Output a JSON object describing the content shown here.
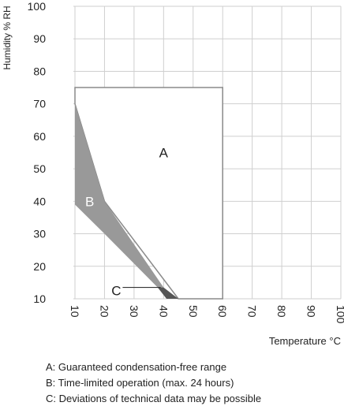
{
  "chart_data": {
    "type": "area",
    "title": "",
    "xlabel": "Temperature °C",
    "ylabel": "Humidity % RH",
    "xlim": [
      10,
      100
    ],
    "ylim": [
      10,
      100
    ],
    "x_ticks": [
      "10",
      "20",
      "30",
      "40",
      "50",
      "60",
      "70",
      "80",
      "90",
      "100"
    ],
    "y_ticks": [
      "10",
      "20",
      "30",
      "40",
      "50",
      "60",
      "70",
      "80",
      "90",
      "100"
    ],
    "grid": true,
    "regions": [
      {
        "label": "A",
        "color": "#ffffff",
        "outline": "#8a8a8a",
        "points": [
          [
            10,
            75
          ],
          [
            60,
            75
          ],
          [
            60,
            10
          ],
          [
            45,
            10
          ],
          [
            20,
            40
          ],
          [
            10,
            70
          ]
        ]
      },
      {
        "label": "B",
        "color": "#999999",
        "points": [
          [
            10,
            70
          ],
          [
            20,
            40
          ],
          [
            40,
            13.5
          ],
          [
            38,
            13.5
          ],
          [
            20,
            30
          ],
          [
            10,
            39
          ]
        ]
      },
      {
        "label": "C",
        "color": "#555555",
        "points": [
          [
            38,
            13.5
          ],
          [
            40,
            13.5
          ],
          [
            45,
            10
          ],
          [
            41,
            10
          ]
        ]
      }
    ],
    "annotations": [
      {
        "text": "A",
        "x": 40,
        "y": 55
      },
      {
        "text": "B",
        "x": 15,
        "y": 40
      },
      {
        "text": "C",
        "x": 24,
        "y": 12.5,
        "leader_to": [
          39,
          13.5
        ]
      }
    ]
  },
  "legend": {
    "a": "A: Guaranteed condensation-free range",
    "b": "B: Time-limited operation (max. 24 hours)",
    "c": "C: Deviations of technical data may be possible"
  }
}
